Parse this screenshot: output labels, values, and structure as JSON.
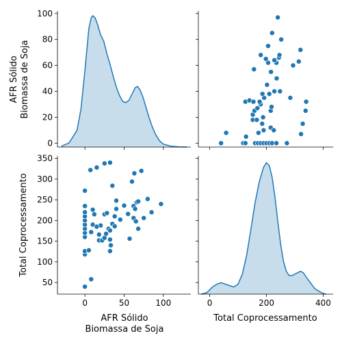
{
  "chart_data": {
    "type": "pairplot",
    "variables": [
      "AFR Sólido\nBiomassa de Soja",
      "Total Coprocessamento"
    ],
    "color": "#1f77b4",
    "diag_kind": "kde",
    "ticks": {
      "afr": [
        "0",
        "50",
        "100"
      ],
      "afr_y": [
        "0",
        "20",
        "40",
        "60",
        "80",
        "100"
      ],
      "total_x": [
        "0",
        "200",
        "400"
      ],
      "total_y": [
        "50",
        "100",
        "150",
        "200",
        "250",
        "300",
        "350"
      ]
    },
    "axes": {
      "afr_range": [
        -35,
        135
      ],
      "afr_y_range": [
        -3,
        102
      ],
      "total_x_range": [
        -40,
        435
      ],
      "total_y_range": [
        22,
        356
      ]
    },
    "x_labels": [
      "AFR Sólido",
      "Biomassa de Soja",
      "Total Coprocessamento"
    ],
    "y_labels": [
      "AFR Sólido",
      "Biomassa de Soja",
      "Total Coprocessamento"
    ],
    "kde_afr": [
      [
        -30,
        0.0002
      ],
      [
        -20,
        0.001
      ],
      [
        -10,
        0.004
      ],
      [
        -5,
        0.009
      ],
      [
        0,
        0.018
      ],
      [
        3,
        0.024
      ],
      [
        5,
        0.028
      ],
      [
        8,
        0.0305
      ],
      [
        10,
        0.031
      ],
      [
        13,
        0.0305
      ],
      [
        16,
        0.029
      ],
      [
        20,
        0.0265
      ],
      [
        24,
        0.025
      ],
      [
        28,
        0.022
      ],
      [
        32,
        0.0195
      ],
      [
        36,
        0.0168
      ],
      [
        40,
        0.0142
      ],
      [
        44,
        0.0122
      ],
      [
        48,
        0.0108
      ],
      [
        52,
        0.0105
      ],
      [
        56,
        0.011
      ],
      [
        60,
        0.0125
      ],
      [
        64,
        0.014
      ],
      [
        67,
        0.0143
      ],
      [
        70,
        0.0136
      ],
      [
        74,
        0.0118
      ],
      [
        78,
        0.0093
      ],
      [
        82,
        0.0068
      ],
      [
        86,
        0.0047
      ],
      [
        90,
        0.003
      ],
      [
        95,
        0.0015
      ],
      [
        100,
        0.0007
      ],
      [
        110,
        0.0002
      ],
      [
        120,
        5e-05
      ],
      [
        130,
        0.0
      ]
    ],
    "kde_total": [
      [
        -30,
        0.0
      ],
      [
        -10,
        0.0001
      ],
      [
        0,
        0.0003
      ],
      [
        10,
        0.0005
      ],
      [
        25,
        0.0007
      ],
      [
        40,
        0.0008
      ],
      [
        55,
        0.0007
      ],
      [
        70,
        0.0006
      ],
      [
        85,
        0.0005
      ],
      [
        100,
        0.0007
      ],
      [
        115,
        0.0014
      ],
      [
        130,
        0.0027
      ],
      [
        145,
        0.0045
      ],
      [
        160,
        0.0064
      ],
      [
        175,
        0.0079
      ],
      [
        190,
        0.0089
      ],
      [
        200,
        0.0092
      ],
      [
        210,
        0.009
      ],
      [
        220,
        0.0082
      ],
      [
        230,
        0.0068
      ],
      [
        240,
        0.0051
      ],
      [
        250,
        0.0035
      ],
      [
        260,
        0.0023
      ],
      [
        270,
        0.0016
      ],
      [
        280,
        0.0013
      ],
      [
        290,
        0.0013
      ],
      [
        300,
        0.0014
      ],
      [
        310,
        0.0015
      ],
      [
        320,
        0.0016
      ],
      [
        330,
        0.0015
      ],
      [
        340,
        0.0012
      ],
      [
        355,
        0.0008
      ],
      [
        370,
        0.0004
      ],
      [
        385,
        0.0002
      ],
      [
        400,
        5e-05
      ],
      [
        410,
        0.0
      ]
    ],
    "points": [
      [
        0,
        40
      ],
      [
        8,
        58
      ],
      [
        0,
        118
      ],
      [
        0,
        126
      ],
      [
        5,
        128
      ],
      [
        0,
        160
      ],
      [
        0,
        170
      ],
      [
        0,
        180
      ],
      [
        0,
        190
      ],
      [
        0,
        200
      ],
      [
        0,
        210
      ],
      [
        0,
        220
      ],
      [
        0,
        235
      ],
      [
        0,
        272
      ],
      [
        7,
        322
      ],
      [
        15,
        328
      ],
      [
        25,
        338
      ],
      [
        32,
        340
      ],
      [
        8,
        172
      ],
      [
        10,
        190
      ],
      [
        12,
        215
      ],
      [
        10,
        226
      ],
      [
        18,
        152
      ],
      [
        18,
        166
      ],
      [
        20,
        188
      ],
      [
        15,
        185
      ],
      [
        22,
        152
      ],
      [
        25,
        158
      ],
      [
        27,
        168
      ],
      [
        25,
        215
      ],
      [
        28,
        218
      ],
      [
        30,
        180
      ],
      [
        32,
        176
      ],
      [
        32,
        126
      ],
      [
        33,
        140
      ],
      [
        32,
        154
      ],
      [
        35,
        192
      ],
      [
        35,
        284
      ],
      [
        38,
        186
      ],
      [
        38,
        210
      ],
      [
        40,
        228
      ],
      [
        40,
        248
      ],
      [
        45,
        202
      ],
      [
        50,
        236
      ],
      [
        55,
        216
      ],
      [
        57,
        156
      ],
      [
        60,
        294
      ],
      [
        62,
        206
      ],
      [
        62,
        235
      ],
      [
        63,
        314
      ],
      [
        65,
        198
      ],
      [
        64,
        228
      ],
      [
        66,
        244
      ],
      [
        68,
        180
      ],
      [
        72,
        320
      ],
      [
        75,
        206
      ],
      [
        80,
        252
      ],
      [
        85,
        220
      ],
      [
        97,
        240
      ],
      [
        68,
        246
      ]
    ]
  }
}
